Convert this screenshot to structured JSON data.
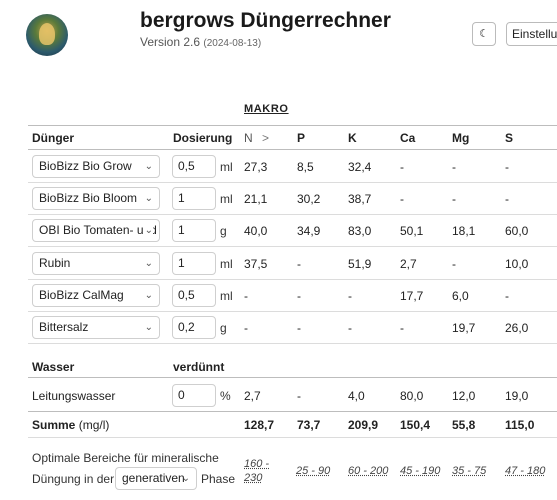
{
  "header": {
    "title": "bergrows Düngerrechner",
    "version": "Version 2.6",
    "date": "(2024-08-13)",
    "theme_icon": "moon-icon",
    "settings_label": "Einstellungen"
  },
  "makro_label": "MAKRO",
  "columns": {
    "fert": "Dünger",
    "dose": "Dosierung",
    "n": "N",
    "n_chevron": ">",
    "p": "P",
    "k": "K",
    "ca": "Ca",
    "mg": "Mg",
    "s": "S"
  },
  "fertilizers": [
    {
      "name": "BioBizz Bio Grow",
      "amount": "0,5",
      "unit": "ml",
      "n": "27,3",
      "p": "8,5",
      "k": "32,4",
      "ca": "-",
      "mg": "-",
      "s": "-"
    },
    {
      "name": "BioBizz Bio Bloom",
      "amount": "1",
      "unit": "ml",
      "n": "21,1",
      "p": "30,2",
      "k": "38,7",
      "ca": "-",
      "mg": "-",
      "s": "-"
    },
    {
      "name": "OBI Bio Tomaten- und",
      "amount": "1",
      "unit": "g",
      "n": "40,0",
      "p": "34,9",
      "k": "83,0",
      "ca": "50,1",
      "mg": "18,1",
      "s": "60,0"
    },
    {
      "name": "Rubin",
      "amount": "1",
      "unit": "ml",
      "n": "37,5",
      "p": "-",
      "k": "51,9",
      "ca": "2,7",
      "mg": "-",
      "s": "10,0"
    },
    {
      "name": "BioBizz CalMag",
      "amount": "0,5",
      "unit": "ml",
      "n": "-",
      "p": "-",
      "k": "-",
      "ca": "17,7",
      "mg": "6,0",
      "s": "-"
    },
    {
      "name": "Bittersalz",
      "amount": "0,2",
      "unit": "g",
      "n": "-",
      "p": "-",
      "k": "-",
      "ca": "-",
      "mg": "19,7",
      "s": "26,0"
    }
  ],
  "water": {
    "header": "Wasser",
    "diluted_header": "verdünnt",
    "name": "Leitungswasser",
    "amount": "0",
    "unit": "%",
    "n": "2,7",
    "p": "-",
    "k": "4,0",
    "ca": "80,0",
    "mg": "12,0",
    "s": "19,0"
  },
  "sum": {
    "label": "Summe",
    "unit": "(mg/l)",
    "n": "128,7",
    "p": "73,7",
    "k": "209,9",
    "ca": "150,4",
    "mg": "55,8",
    "s": "115,0"
  },
  "optimal": {
    "line1": "Optimale Bereiche für mineralische",
    "line2_prefix": "Düngung in der",
    "phase_select": "generativen",
    "phase_label": "Phase",
    "n_line1": "160 -",
    "n_line2": "230",
    "p": "25 - 90",
    "k": "60 - 200",
    "ca": "45 - 190",
    "mg": "35 - 75",
    "s": "47 - 180"
  }
}
